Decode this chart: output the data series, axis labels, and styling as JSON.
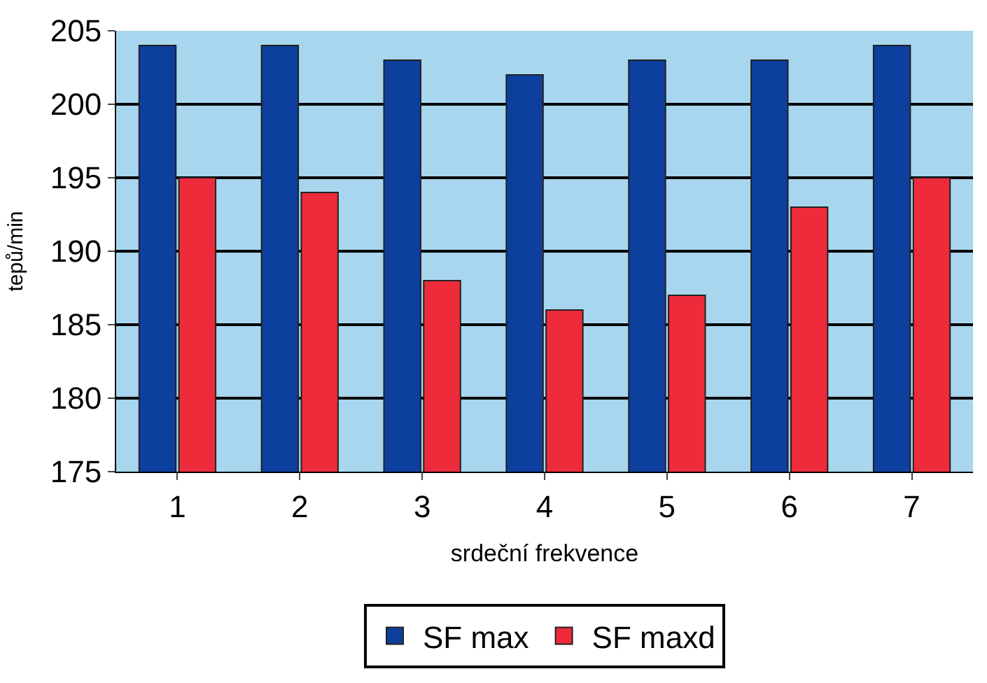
{
  "chart_data": {
    "type": "bar",
    "xlabel": "srdeční frekvence",
    "ylabel": "tepů/min",
    "categories": [
      "1",
      "2",
      "3",
      "4",
      "5",
      "6",
      "7"
    ],
    "series": [
      {
        "name": "SF max",
        "color": "#0c3f9e",
        "values": [
          204,
          204,
          203,
          202,
          203,
          203,
          204
        ]
      },
      {
        "name": "SF maxd",
        "color": "#ee2b3b",
        "values": [
          195,
          194,
          188,
          186,
          187,
          193,
          195
        ]
      }
    ],
    "ylim": [
      175,
      205
    ],
    "yticks": [
      175,
      180,
      185,
      190,
      195,
      200,
      205
    ],
    "grid": "y",
    "legend": "bottom"
  }
}
